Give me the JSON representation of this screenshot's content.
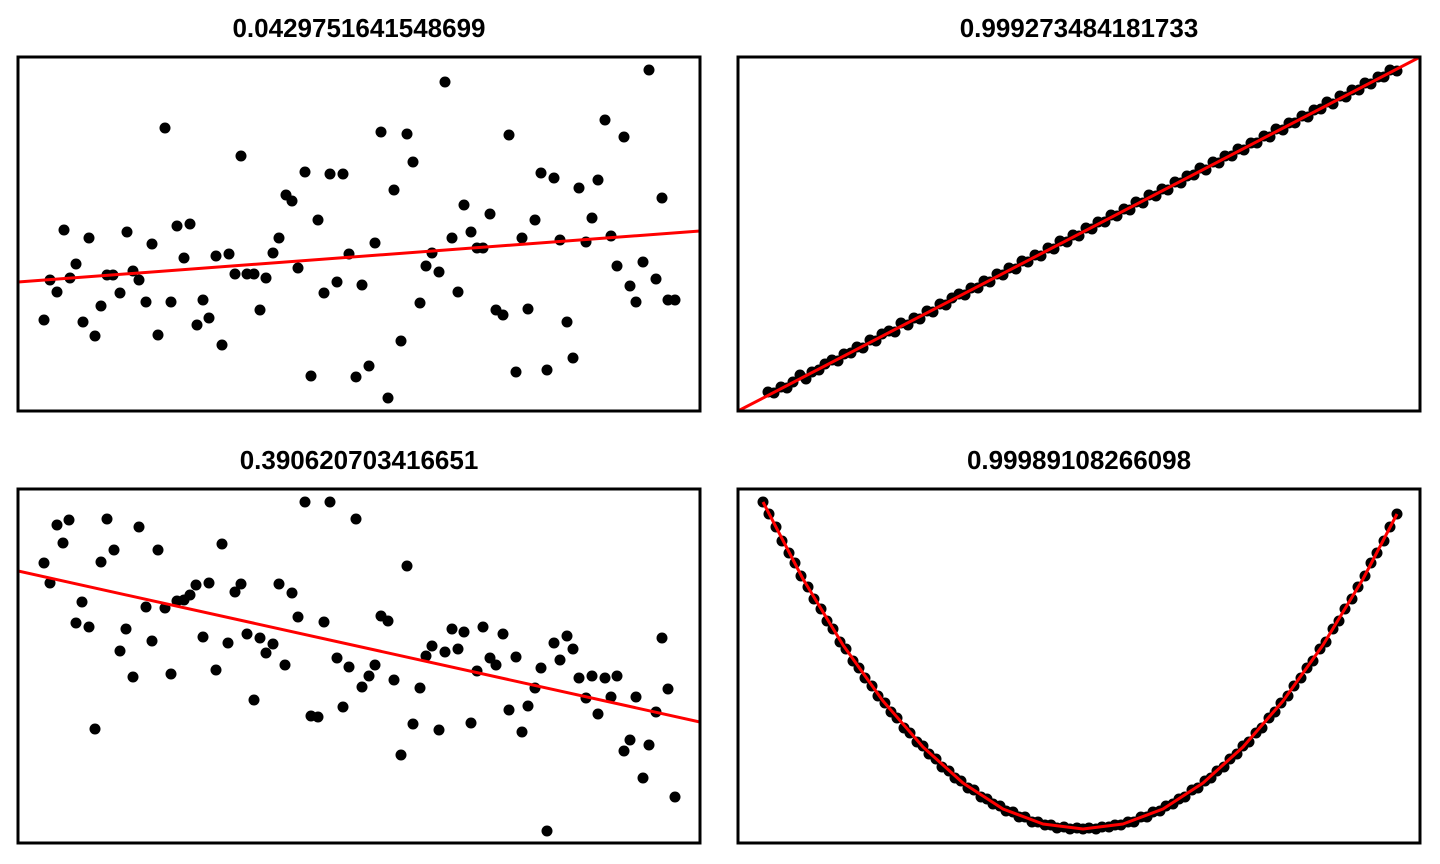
{
  "chart_data": [
    {
      "type": "scatter",
      "title": "0.0429751641548699",
      "xlim": [
        0,
        682
      ],
      "ylim": [
        0,
        354
      ],
      "series": [
        {
          "type": "scatter",
          "color": "#000000",
          "x": [
            26,
            32,
            39,
            46,
            52,
            58,
            65,
            71,
            77,
            83,
            89,
            95,
            102,
            109,
            115,
            121,
            128,
            134,
            140,
            147,
            153,
            159,
            166,
            172,
            179,
            185,
            191,
            198,
            204,
            211,
            217,
            223,
            229,
            236,
            242,
            248,
            255,
            261,
            268,
            274,
            280,
            287,
            293,
            300,
            306,
            312,
            319,
            325,
            331,
            338,
            344,
            351,
            357,
            363,
            370,
            376,
            383,
            389,
            395,
            402,
            408,
            414,
            421,
            427,
            434,
            440,
            446,
            453,
            459,
            465,
            472,
            478,
            485,
            491,
            498,
            504,
            510,
            517,
            523,
            529,
            536,
            542,
            549,
            555,
            561,
            568,
            574,
            580,
            587,
            593,
            599,
            606,
            612,
            618,
            625,
            631,
            638,
            644,
            650,
            657
          ],
          "values": [
            91,
            131,
            119,
            181,
            133,
            147,
            89,
            173,
            75,
            105,
            136,
            136,
            118,
            179,
            140,
            131,
            109,
            167,
            76,
            283,
            109,
            185,
            153,
            187,
            86,
            111,
            93,
            155,
            66,
            157,
            137,
            255,
            137,
            137,
            101,
            133,
            158,
            173,
            216,
            210,
            143,
            239,
            35,
            191,
            118,
            237,
            129,
            237,
            157,
            34,
            126,
            45,
            168,
            279,
            13,
            221,
            70,
            277,
            249,
            108,
            145,
            158,
            139,
            329,
            173,
            119,
            206,
            179,
            163,
            163,
            197,
            101,
            96,
            276,
            39,
            173,
            102,
            191,
            238,
            41,
            233,
            171,
            89,
            53,
            223,
            169,
            193,
            231,
            291,
            175,
            145,
            274,
            125,
            109,
            149,
            341,
            132,
            213,
            111,
            111
          ]
        },
        {
          "type": "line",
          "color": "#ff0000",
          "x": [
            0,
            682
          ],
          "values": [
            129,
            180
          ]
        }
      ]
    },
    {
      "type": "scatter",
      "title": "0.999273484181733",
      "xlim": [
        0,
        682
      ],
      "ylim": [
        0,
        354
      ],
      "series": [
        {
          "type": "scatter",
          "color": "#000000",
          "x": [
            30,
            36,
            43,
            49,
            55,
            62,
            68,
            74,
            81,
            87,
            94,
            100,
            106,
            113,
            119,
            125,
            132,
            138,
            144,
            151,
            157,
            163,
            170,
            176,
            182,
            189,
            195,
            202,
            208,
            214,
            221,
            227,
            233,
            240,
            246,
            252,
            259,
            265,
            271,
            278,
            284,
            290,
            297,
            303,
            310,
            316,
            322,
            329,
            335,
            341,
            348,
            354,
            360,
            367,
            373,
            379,
            386,
            392,
            398,
            405,
            411,
            418,
            424,
            430,
            437,
            443,
            449,
            456,
            462,
            468,
            475,
            481,
            487,
            494,
            500,
            506,
            513,
            519,
            526,
            532,
            538,
            545,
            551,
            557,
            564,
            570,
            576,
            583,
            589,
            595,
            602,
            608,
            614,
            621,
            627,
            633,
            640,
            646,
            652,
            659
          ],
          "values": [
            19,
            18,
            24,
            23,
            29,
            36,
            32,
            39,
            41,
            47,
            51,
            50,
            57,
            58,
            64,
            63,
            71,
            70,
            77,
            80,
            79,
            88,
            86,
            93,
            92,
            100,
            99,
            107,
            106,
            113,
            117,
            116,
            123,
            123,
            130,
            129,
            137,
            136,
            143,
            142,
            150,
            149,
            156,
            155,
            163,
            162,
            170,
            169,
            176,
            175,
            183,
            182,
            189,
            189,
            196,
            195,
            202,
            201,
            209,
            208,
            216,
            215,
            222,
            221,
            229,
            228,
            235,
            236,
            243,
            241,
            249,
            248,
            255,
            255,
            262,
            261,
            268,
            268,
            275,
            274,
            282,
            281,
            288,
            288,
            295,
            294,
            301,
            302,
            309,
            307,
            315,
            314,
            321,
            321,
            328,
            327,
            334,
            334,
            341,
            340
          ]
        },
        {
          "type": "line",
          "color": "#ff0000",
          "x": [
            0,
            682
          ],
          "values": [
            0,
            354
          ]
        }
      ]
    },
    {
      "type": "scatter",
      "title": "0.390620703416651",
      "xlim": [
        0,
        682
      ],
      "ylim": [
        0,
        354
      ],
      "series": [
        {
          "type": "scatter",
          "color": "#000000",
          "x": [
            26,
            32,
            39,
            45,
            51,
            58,
            64,
            71,
            77,
            83,
            89,
            96,
            102,
            108,
            115,
            121,
            128,
            134,
            140,
            147,
            153,
            159,
            166,
            172,
            178,
            185,
            191,
            198,
            204,
            210,
            217,
            223,
            229,
            236,
            242,
            248,
            255,
            261,
            267,
            274,
            280,
            287,
            293,
            300,
            306,
            312,
            319,
            325,
            331,
            338,
            344,
            351,
            357,
            363,
            370,
            376,
            383,
            389,
            395,
            402,
            408,
            414,
            421,
            427,
            434,
            440,
            446,
            453,
            459,
            465,
            472,
            478,
            485,
            491,
            498,
            504,
            510,
            517,
            523,
            529,
            536,
            542,
            549,
            555,
            561,
            568,
            574,
            580,
            587,
            593,
            599,
            606,
            612,
            618,
            625,
            631,
            638,
            644,
            650,
            657
          ],
          "values": [
            280,
            260,
            318,
            300,
            323,
            220,
            241,
            216,
            114,
            281,
            324,
            293,
            192,
            214,
            166,
            316,
            236,
            202,
            293,
            235,
            169,
            242,
            243,
            248,
            258,
            206,
            260,
            173,
            299,
            200,
            251,
            259,
            209,
            143,
            205,
            190,
            199,
            259,
            178,
            250,
            226,
            341,
            127,
            126,
            221,
            341,
            185,
            136,
            176,
            324,
            156,
            167,
            178,
            227,
            222,
            163,
            88,
            277,
            119,
            155,
            187,
            197,
            113,
            191,
            214,
            194,
            211,
            120,
            172,
            216,
            185,
            178,
            209,
            133,
            186,
            111,
            137,
            155,
            175,
            12,
            200,
            183,
            207,
            194,
            165,
            145,
            167,
            129,
            165,
            146,
            167,
            92,
            103,
            146,
            65,
            98,
            131,
            205,
            154,
            46
          ]
        },
        {
          "type": "line",
          "color": "#ff0000",
          "x": [
            0,
            682
          ],
          "values": [
            272,
            121
          ]
        }
      ]
    },
    {
      "type": "scatter",
      "title": "0.99989108266098",
      "xlim": [
        0,
        682
      ],
      "ylim": [
        0,
        354
      ],
      "series": [
        {
          "type": "scatter",
          "color": "#000000",
          "x": [
            25,
            31,
            38,
            44,
            51,
            57,
            63,
            70,
            76,
            83,
            89,
            95,
            102,
            108,
            115,
            121,
            127,
            134,
            140,
            147,
            153,
            159,
            166,
            172,
            179,
            185,
            191,
            198,
            204,
            211,
            217,
            223,
            230,
            236,
            243,
            249,
            255,
            262,
            268,
            275,
            281,
            287,
            294,
            300,
            307,
            313,
            319,
            326,
            332,
            339,
            345,
            351,
            358,
            364,
            371,
            377,
            383,
            390,
            396,
            403,
            409,
            415,
            422,
            428,
            435,
            441,
            447,
            454,
            460,
            467,
            473,
            479,
            486,
            492,
            499,
            505,
            511,
            518,
            524,
            531,
            537,
            543,
            550,
            556,
            563,
            569,
            575,
            582,
            588,
            595,
            601,
            607,
            614,
            620,
            627,
            633,
            639,
            646,
            652,
            659
          ],
          "values": [
            341,
            329,
            316,
            302,
            290,
            280,
            267,
            256,
            244,
            234,
            222,
            214,
            201,
            194,
            182,
            175,
            165,
            157,
            147,
            140,
            131,
            125,
            115,
            110,
            101,
            97,
            89,
            84,
            76,
            72,
            65,
            62,
            55,
            53,
            46,
            44,
            39,
            37,
            32,
            31,
            26,
            26,
            21,
            21,
            18,
            18,
            15,
            16,
            14,
            15,
            14,
            15,
            14,
            16,
            16,
            18,
            18,
            21,
            21,
            26,
            26,
            31,
            32,
            37,
            39,
            44,
            46,
            53,
            55,
            62,
            65,
            72,
            76,
            84,
            89,
            97,
            101,
            110,
            115,
            125,
            131,
            140,
            147,
            157,
            165,
            175,
            182,
            194,
            201,
            214,
            222,
            234,
            244,
            256,
            267,
            280,
            290,
            302,
            316,
            329
          ]
        },
        {
          "type": "line",
          "color": "#ff0000",
          "x": [
            25,
            65,
            105,
            145,
            185,
            225,
            265,
            305,
            345,
            385,
            425,
            465,
            505,
            545,
            585,
            625,
            659
          ],
          "values": [
            341,
            264,
            198,
            142,
            96,
            60,
            34,
            19,
            14,
            19,
            34,
            60,
            96,
            142,
            198,
            264,
            329
          ]
        }
      ]
    }
  ]
}
